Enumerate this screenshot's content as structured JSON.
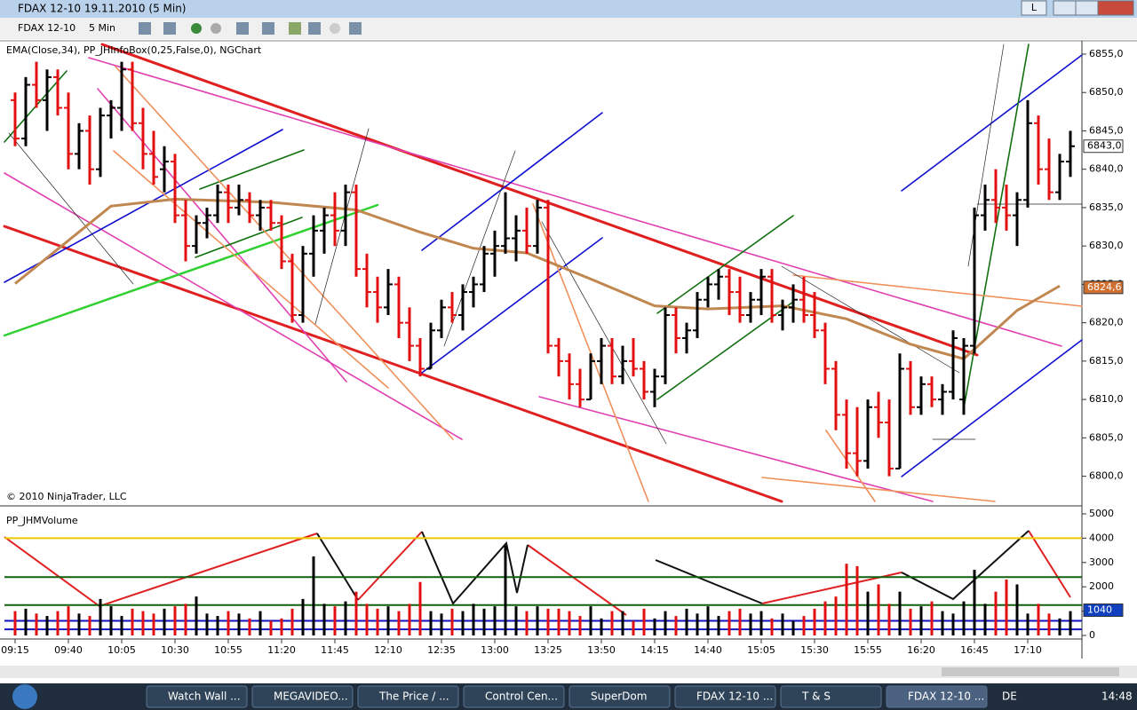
{
  "window": {
    "title": "FDAX 12-10  19.11.2010 (5 Min)",
    "min_button": "L"
  },
  "toolbar": {
    "instrument": "FDAX 12-10",
    "interval": "5 Min"
  },
  "taskbar": {
    "items": [
      "Watch Wall ...",
      "MEGAVIDEO...",
      "The Price / ...",
      "Control Cen...",
      "SuperDom",
      "FDAX 12-10 ...",
      "T & S",
      "FDAX 12-10 ..."
    ],
    "language": "DE",
    "clock": "14:48"
  },
  "chart_data": [
    {
      "type": "ohlc",
      "indicator_label": "EMA(Close,34), PP_JHInfoBox(0,25,False,0), NGChart",
      "copyright": "© 2010 NinjaTrader, LLC",
      "up_color": "#000000",
      "down_color": "#e01010",
      "bars": [
        [
          6849,
          6850,
          6843,
          6844
        ],
        [
          6844,
          6852,
          6843,
          6851
        ],
        [
          6851,
          6854,
          6848,
          6849
        ],
        [
          6849,
          6853,
          6845,
          6852
        ],
        [
          6852,
          6853,
          6847,
          6848
        ],
        [
          6848,
          6850,
          6840,
          6842
        ],
        [
          6842,
          6846,
          6840,
          6845
        ],
        [
          6845,
          6847,
          6838,
          6840
        ],
        [
          6840,
          6848,
          6839,
          6847
        ],
        [
          6847,
          6849,
          6844,
          6848
        ],
        [
          6848,
          6854,
          6845,
          6853
        ],
        [
          6853,
          6854,
          6845,
          6846
        ],
        [
          6846,
          6848,
          6840,
          6842
        ],
        [
          6842,
          6845,
          6838,
          6839
        ],
        [
          6840,
          6843,
          6837,
          6841
        ],
        [
          6841,
          6842,
          6833,
          6834
        ],
        [
          6834,
          6836,
          6828,
          6830
        ],
        [
          6830,
          6834,
          6829,
          6833
        ],
        [
          6833,
          6835,
          6831,
          6834
        ],
        [
          6834,
          6838,
          6833,
          6837
        ],
        [
          6837,
          6838,
          6833,
          6835
        ],
        [
          6835,
          6838,
          6834,
          6836
        ],
        [
          6836,
          6837,
          6833,
          6834
        ],
        [
          6834,
          6836,
          6832,
          6835
        ],
        [
          6835,
          6836,
          6832,
          6833
        ],
        [
          6833,
          6834,
          6827,
          6828
        ],
        [
          6828,
          6829,
          6820,
          6821
        ],
        [
          6821,
          6830,
          6820,
          6829
        ],
        [
          6829,
          6834,
          6826,
          6832
        ],
        [
          6832,
          6835,
          6829,
          6834
        ],
        [
          6834,
          6837,
          6830,
          6832
        ],
        [
          6832,
          6838,
          6830,
          6837
        ],
        [
          6837,
          6838,
          6826,
          6827
        ],
        [
          6827,
          6829,
          6822,
          6824
        ],
        [
          6824,
          6826,
          6820,
          6822
        ],
        [
          6822,
          6827,
          6821,
          6825
        ],
        [
          6825,
          6826,
          6818,
          6820
        ],
        [
          6820,
          6822,
          6815,
          6817
        ],
        [
          6817,
          6818,
          6813,
          6814
        ],
        [
          6814,
          6820,
          6814,
          6819
        ],
        [
          6819,
          6823,
          6818,
          6822
        ],
        [
          6822,
          6824,
          6820,
          6821
        ],
        [
          6821,
          6825,
          6819,
          6824
        ],
        [
          6824,
          6826,
          6822,
          6825
        ],
        [
          6825,
          6830,
          6824,
          6829
        ],
        [
          6829,
          6832,
          6826,
          6830
        ],
        [
          6830,
          6837,
          6829,
          6831
        ],
        [
          6831,
          6834,
          6828,
          6832
        ],
        [
          6832,
          6835,
          6829,
          6830
        ],
        [
          6830,
          6836,
          6829,
          6835
        ],
        [
          6835,
          6836,
          6816,
          6817
        ],
        [
          6817,
          6818,
          6813,
          6815
        ],
        [
          6815,
          6816,
          6810,
          6812
        ],
        [
          6812,
          6814,
          6809,
          6810
        ],
        [
          6810,
          6816,
          6810,
          6815
        ],
        [
          6815,
          6818,
          6812,
          6817
        ],
        [
          6817,
          6818,
          6812,
          6813
        ],
        [
          6813,
          6817,
          6812,
          6815
        ],
        [
          6815,
          6818,
          6813,
          6814
        ],
        [
          6814,
          6815,
          6810,
          6811
        ],
        [
          6811,
          6814,
          6809,
          6813
        ],
        [
          6813,
          6822,
          6812,
          6821
        ],
        [
          6821,
          6822,
          6816,
          6818
        ],
        [
          6818,
          6820,
          6816,
          6819
        ],
        [
          6819,
          6824,
          6818,
          6823
        ],
        [
          6823,
          6826,
          6822,
          6825
        ],
        [
          6825,
          6827,
          6823,
          6826
        ],
        [
          6826,
          6827,
          6821,
          6824
        ],
        [
          6824,
          6826,
          6820,
          6821
        ],
        [
          6821,
          6824,
          6820,
          6823
        ],
        [
          6823,
          6827,
          6821,
          6826
        ],
        [
          6826,
          6827,
          6820,
          6821
        ],
        [
          6821,
          6823,
          6819,
          6822
        ],
        [
          6822,
          6825,
          6820,
          6823
        ],
        [
          6823,
          6826,
          6820,
          6821
        ],
        [
          6821,
          6824,
          6818,
          6819
        ],
        [
          6819,
          6820,
          6812,
          6814
        ],
        [
          6814,
          6815,
          6806,
          6808
        ],
        [
          6808,
          6810,
          6801,
          6803
        ],
        [
          6803,
          6809,
          6800,
          6802
        ],
        [
          6802,
          6810,
          6801,
          6809
        ],
        [
          6809,
          6811,
          6805,
          6807
        ],
        [
          6807,
          6810,
          6800,
          6801
        ],
        [
          6801,
          6816,
          6801,
          6814
        ],
        [
          6814,
          6815,
          6808,
          6809
        ],
        [
          6809,
          6813,
          6808,
          6812
        ],
        [
          6812,
          6813,
          6809,
          6810
        ],
        [
          6810,
          6812,
          6808,
          6811
        ],
        [
          6811,
          6819,
          6810,
          6818
        ],
        [
          6810,
          6818,
          6808,
          6817
        ],
        [
          6817,
          6835,
          6816,
          6834
        ],
        [
          6834,
          6838,
          6832,
          6836
        ],
        [
          6836,
          6840,
          6833,
          6835
        ],
        [
          6835,
          6838,
          6832,
          6834
        ],
        [
          6834,
          6837,
          6830,
          6836
        ],
        [
          6836,
          6849,
          6835,
          6846
        ],
        [
          6846,
          6847,
          6838,
          6840
        ],
        [
          6840,
          6844,
          6836,
          6837
        ],
        [
          6837,
          6842,
          6836,
          6841
        ],
        [
          6841,
          6845,
          6839,
          6843
        ]
      ],
      "ema": {
        "color": "#c08850",
        "bar_index": [
          0,
          9,
          15,
          24,
          32,
          38,
          43,
          48,
          54,
          60,
          65,
          72,
          78,
          84,
          89,
          94,
          98
        ],
        "values": [
          6825.1,
          6835.2,
          6836.1,
          6835.7,
          6834.7,
          6831.8,
          6829.7,
          6829.1,
          6825.7,
          6822.2,
          6821.8,
          6822.2,
          6820.5,
          6817.2,
          6815.3,
          6821.6,
          6824.8
        ]
      },
      "ylim": [
        6796.6,
        6856.5
      ],
      "yticks": [
        {
          "value": 6800,
          "label": "6800,0"
        },
        {
          "value": 6805,
          "label": "6805,0"
        },
        {
          "value": 6810,
          "label": "6810,0"
        },
        {
          "value": 6815,
          "label": "6815,0"
        },
        {
          "value": 6820,
          "label": "6820,0"
        },
        {
          "value": 6825,
          "label": "6825,0"
        },
        {
          "value": 6830,
          "label": "6830,0"
        },
        {
          "value": 6835,
          "label": "6835,0"
        },
        {
          "value": 6840,
          "label": "6840,0"
        },
        {
          "value": 6845,
          "label": "6845,0"
        },
        {
          "value": 6850,
          "label": "6850,0"
        },
        {
          "value": 6855,
          "label": "6855,0"
        }
      ],
      "markers": [
        {
          "value": 6843,
          "label": "6843,0",
          "fill": "#ffffff"
        },
        {
          "value": 6824.6,
          "label": "6824,6",
          "fill": "#d07030"
        }
      ],
      "xticks": [
        {
          "value": 0,
          "label": "09:15"
        },
        {
          "value": 5,
          "label": "09:40"
        },
        {
          "value": 10,
          "label": "10:05"
        },
        {
          "value": 15,
          "label": "10:30"
        },
        {
          "value": 20,
          "label": "10:55"
        },
        {
          "value": 25,
          "label": "11:20"
        },
        {
          "value": 30,
          "label": "11:45"
        },
        {
          "value": 35,
          "label": "12:10"
        },
        {
          "value": 40,
          "label": "12:35"
        },
        {
          "value": 45,
          "label": "13:00"
        },
        {
          "value": 50,
          "label": "13:25"
        },
        {
          "value": 55,
          "label": "13:50"
        },
        {
          "value": 60,
          "label": "14:15"
        },
        {
          "value": 65,
          "label": "14:40"
        },
        {
          "value": 70,
          "label": "15:05"
        },
        {
          "value": 75,
          "label": "15:30"
        },
        {
          "value": 80,
          "label": "15:55"
        },
        {
          "value": 85,
          "label": "16:20"
        },
        {
          "value": 90,
          "label": "16:45"
        },
        {
          "value": 95,
          "label": "17:10"
        }
      ]
    },
    {
      "type": "volume",
      "title": "PP_JHMVolume",
      "values": [
        1000,
        1100,
        900,
        800,
        1000,
        1200,
        900,
        800,
        1500,
        1200,
        800,
        1100,
        1000,
        900,
        1100,
        1200,
        1300,
        1600,
        900,
        800,
        1000,
        900,
        700,
        1000,
        600,
        700,
        1100,
        1500,
        3250,
        1300,
        1200,
        1400,
        1800,
        1300,
        1100,
        1200,
        1000,
        1300,
        2200,
        1000,
        900,
        1100,
        1000,
        1300,
        1100,
        1200,
        3700,
        1200,
        1000,
        1200,
        1100,
        1100,
        1000,
        800,
        1200,
        700,
        1000,
        1000,
        600,
        1100,
        700,
        1000,
        800,
        1100,
        900,
        1200,
        800,
        1000,
        1100,
        900,
        1000,
        700,
        900,
        600,
        800,
        1100,
        1400,
        1600,
        2950,
        2850,
        1800,
        2100,
        1300,
        1800,
        1100,
        1200,
        1400,
        1000,
        900,
        1400,
        2700,
        1300,
        1800,
        2300,
        2100,
        900,
        1300,
        900,
        700,
        1000
      ],
      "levels": [
        {
          "value": 4000,
          "color": "#f0c800"
        },
        {
          "value": 2400,
          "color": "#106010"
        },
        {
          "value": 1250,
          "color": "#106010"
        },
        {
          "value": 600,
          "color": "#1010c0"
        },
        {
          "value": 250,
          "color": "#1010c0"
        }
      ],
      "marker": {
        "value": 1040,
        "label": "1040",
        "fill": "#1040c0"
      },
      "ylim": [
        -146,
        5219
      ],
      "yticks": [
        0,
        1000,
        2000,
        3000,
        4000,
        5000
      ]
    }
  ]
}
